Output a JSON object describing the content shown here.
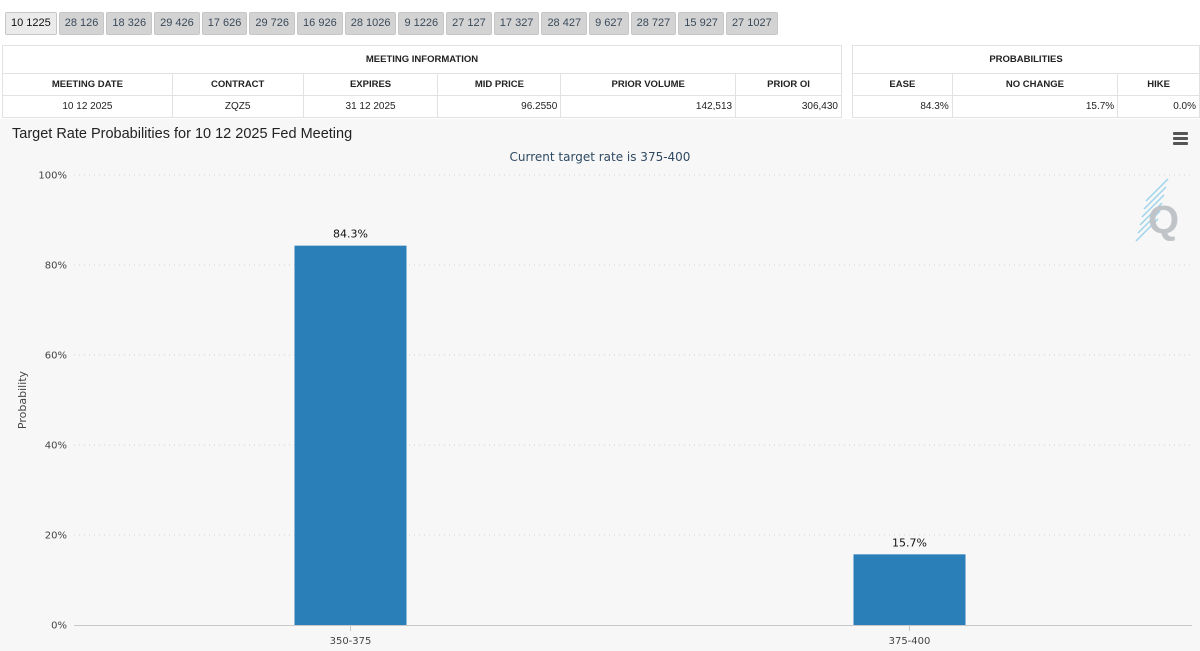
{
  "tabs": [
    "10 1225",
    "28 126",
    "18 326",
    "29 426",
    "17 626",
    "29 726",
    "16 926",
    "28 1026",
    "9 1226",
    "27 127",
    "17 327",
    "28 427",
    "9 627",
    "28 727",
    "15 927",
    "27 1027"
  ],
  "meeting_info": {
    "title": "MEETING INFORMATION",
    "headers": [
      "MEETING DATE",
      "CONTRACT",
      "EXPIRES",
      "MID PRICE",
      "PRIOR VOLUME",
      "PRIOR OI"
    ],
    "row": [
      "10 12 2025",
      "ZQZ5",
      "31 12 2025",
      "96.2550",
      "142,513",
      "306,430"
    ]
  },
  "probabilities": {
    "title": "PROBABILITIES",
    "headers": [
      "EASE",
      "NO CHANGE",
      "HIKE"
    ],
    "row": [
      "84.3%",
      "15.7%",
      "0.0%"
    ]
  },
  "chart_data": {
    "type": "bar",
    "title": "Target Rate Probabilities for 10 12 2025 Fed Meeting",
    "subtitle": "Current target rate is 375-400",
    "ylabel": "Probability",
    "xlabel": "",
    "categories": [
      "350-375",
      "375-400"
    ],
    "values": [
      84.3,
      15.7
    ],
    "value_labels": [
      "84.3%",
      "15.7%"
    ],
    "ylim": [
      0,
      100
    ],
    "yticks": [
      0,
      20,
      40,
      60,
      80,
      100
    ],
    "ytick_labels": [
      "0%",
      "20%",
      "40%",
      "60%",
      "80%",
      "100%"
    ],
    "bar_color": "#2b7fb8",
    "grid": true,
    "logo_icon": "q-logo-icon"
  }
}
